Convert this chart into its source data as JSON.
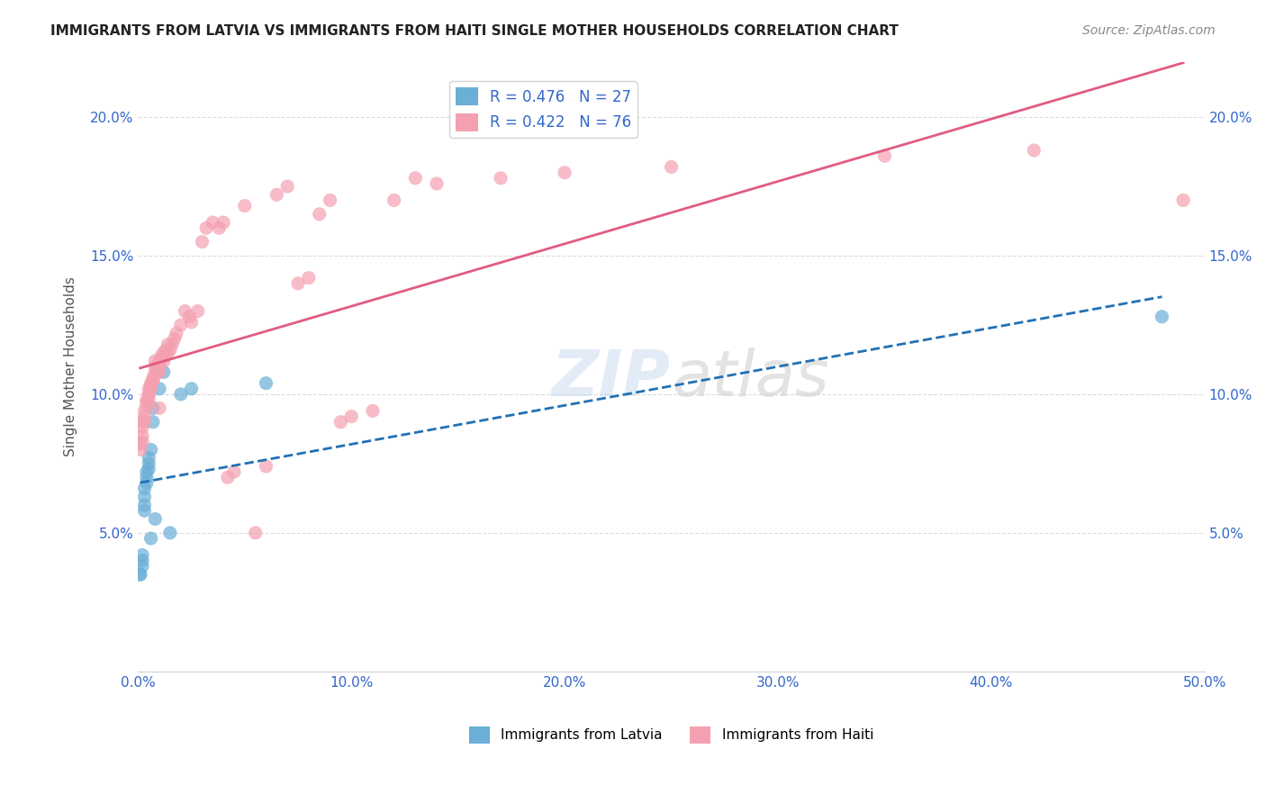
{
  "title": "IMMIGRANTS FROM LATVIA VS IMMIGRANTS FROM HAITI SINGLE MOTHER HOUSEHOLDS CORRELATION CHART",
  "source": "Source: ZipAtlas.com",
  "xlabel": "",
  "ylabel": "Single Mother Households",
  "xlim": [
    0,
    0.5
  ],
  "ylim": [
    0,
    0.22
  ],
  "xticks": [
    0.0,
    0.1,
    0.2,
    0.3,
    0.4,
    0.5
  ],
  "yticks": [
    0.0,
    0.05,
    0.1,
    0.15,
    0.2
  ],
  "xticklabels": [
    "0.0%",
    "10.0%",
    "20.0%",
    "30.0%",
    "40.0%",
    "50.0%"
  ],
  "yticklabels": [
    "",
    "5.0%",
    "10.0%",
    "15.0%",
    "20.0%"
  ],
  "watermark": "ZIPatlas",
  "legend_latvia": "R = 0.476   N = 27",
  "legend_haiti": "R = 0.422   N = 76",
  "latvia_color": "#6baed6",
  "haiti_color": "#f4a0b0",
  "latvia_line_color": "#2171b5",
  "haiti_line_color": "#e05c80",
  "latvia_R": 0.476,
  "latvia_N": 27,
  "haiti_R": 0.422,
  "haiti_N": 76,
  "latvia_x": [
    0.001,
    0.001,
    0.002,
    0.002,
    0.002,
    0.003,
    0.003,
    0.003,
    0.003,
    0.004,
    0.004,
    0.004,
    0.005,
    0.005,
    0.005,
    0.006,
    0.006,
    0.007,
    0.007,
    0.008,
    0.01,
    0.012,
    0.015,
    0.02,
    0.025,
    0.06,
    0.48
  ],
  "latvia_y": [
    0.035,
    0.035,
    0.038,
    0.04,
    0.042,
    0.058,
    0.06,
    0.063,
    0.066,
    0.068,
    0.07,
    0.072,
    0.073,
    0.075,
    0.077,
    0.08,
    0.048,
    0.09,
    0.095,
    0.055,
    0.102,
    0.108,
    0.05,
    0.1,
    0.102,
    0.104,
    0.128
  ],
  "haiti_x": [
    0.001,
    0.001,
    0.002,
    0.002,
    0.002,
    0.002,
    0.003,
    0.003,
    0.003,
    0.004,
    0.004,
    0.004,
    0.005,
    0.005,
    0.005,
    0.005,
    0.006,
    0.006,
    0.006,
    0.007,
    0.007,
    0.007,
    0.008,
    0.008,
    0.008,
    0.009,
    0.009,
    0.01,
    0.01,
    0.01,
    0.01,
    0.011,
    0.011,
    0.012,
    0.012,
    0.013,
    0.013,
    0.014,
    0.014,
    0.015,
    0.016,
    0.017,
    0.018,
    0.02,
    0.022,
    0.024,
    0.025,
    0.028,
    0.03,
    0.032,
    0.035,
    0.038,
    0.04,
    0.042,
    0.045,
    0.05,
    0.055,
    0.06,
    0.065,
    0.07,
    0.075,
    0.08,
    0.085,
    0.09,
    0.095,
    0.1,
    0.11,
    0.12,
    0.13,
    0.14,
    0.17,
    0.2,
    0.25,
    0.35,
    0.42,
    0.49
  ],
  "haiti_y": [
    0.08,
    0.082,
    0.083,
    0.085,
    0.088,
    0.09,
    0.09,
    0.092,
    0.094,
    0.096,
    0.097,
    0.098,
    0.098,
    0.1,
    0.1,
    0.102,
    0.102,
    0.103,
    0.104,
    0.105,
    0.105,
    0.106,
    0.108,
    0.11,
    0.112,
    0.11,
    0.108,
    0.11,
    0.108,
    0.112,
    0.095,
    0.113,
    0.114,
    0.115,
    0.112,
    0.114,
    0.116,
    0.115,
    0.118,
    0.116,
    0.118,
    0.12,
    0.122,
    0.125,
    0.13,
    0.128,
    0.126,
    0.13,
    0.155,
    0.16,
    0.162,
    0.16,
    0.162,
    0.07,
    0.072,
    0.168,
    0.05,
    0.074,
    0.172,
    0.175,
    0.14,
    0.142,
    0.165,
    0.17,
    0.09,
    0.092,
    0.094,
    0.17,
    0.178,
    0.176,
    0.178,
    0.18,
    0.182,
    0.186,
    0.188,
    0.17
  ]
}
